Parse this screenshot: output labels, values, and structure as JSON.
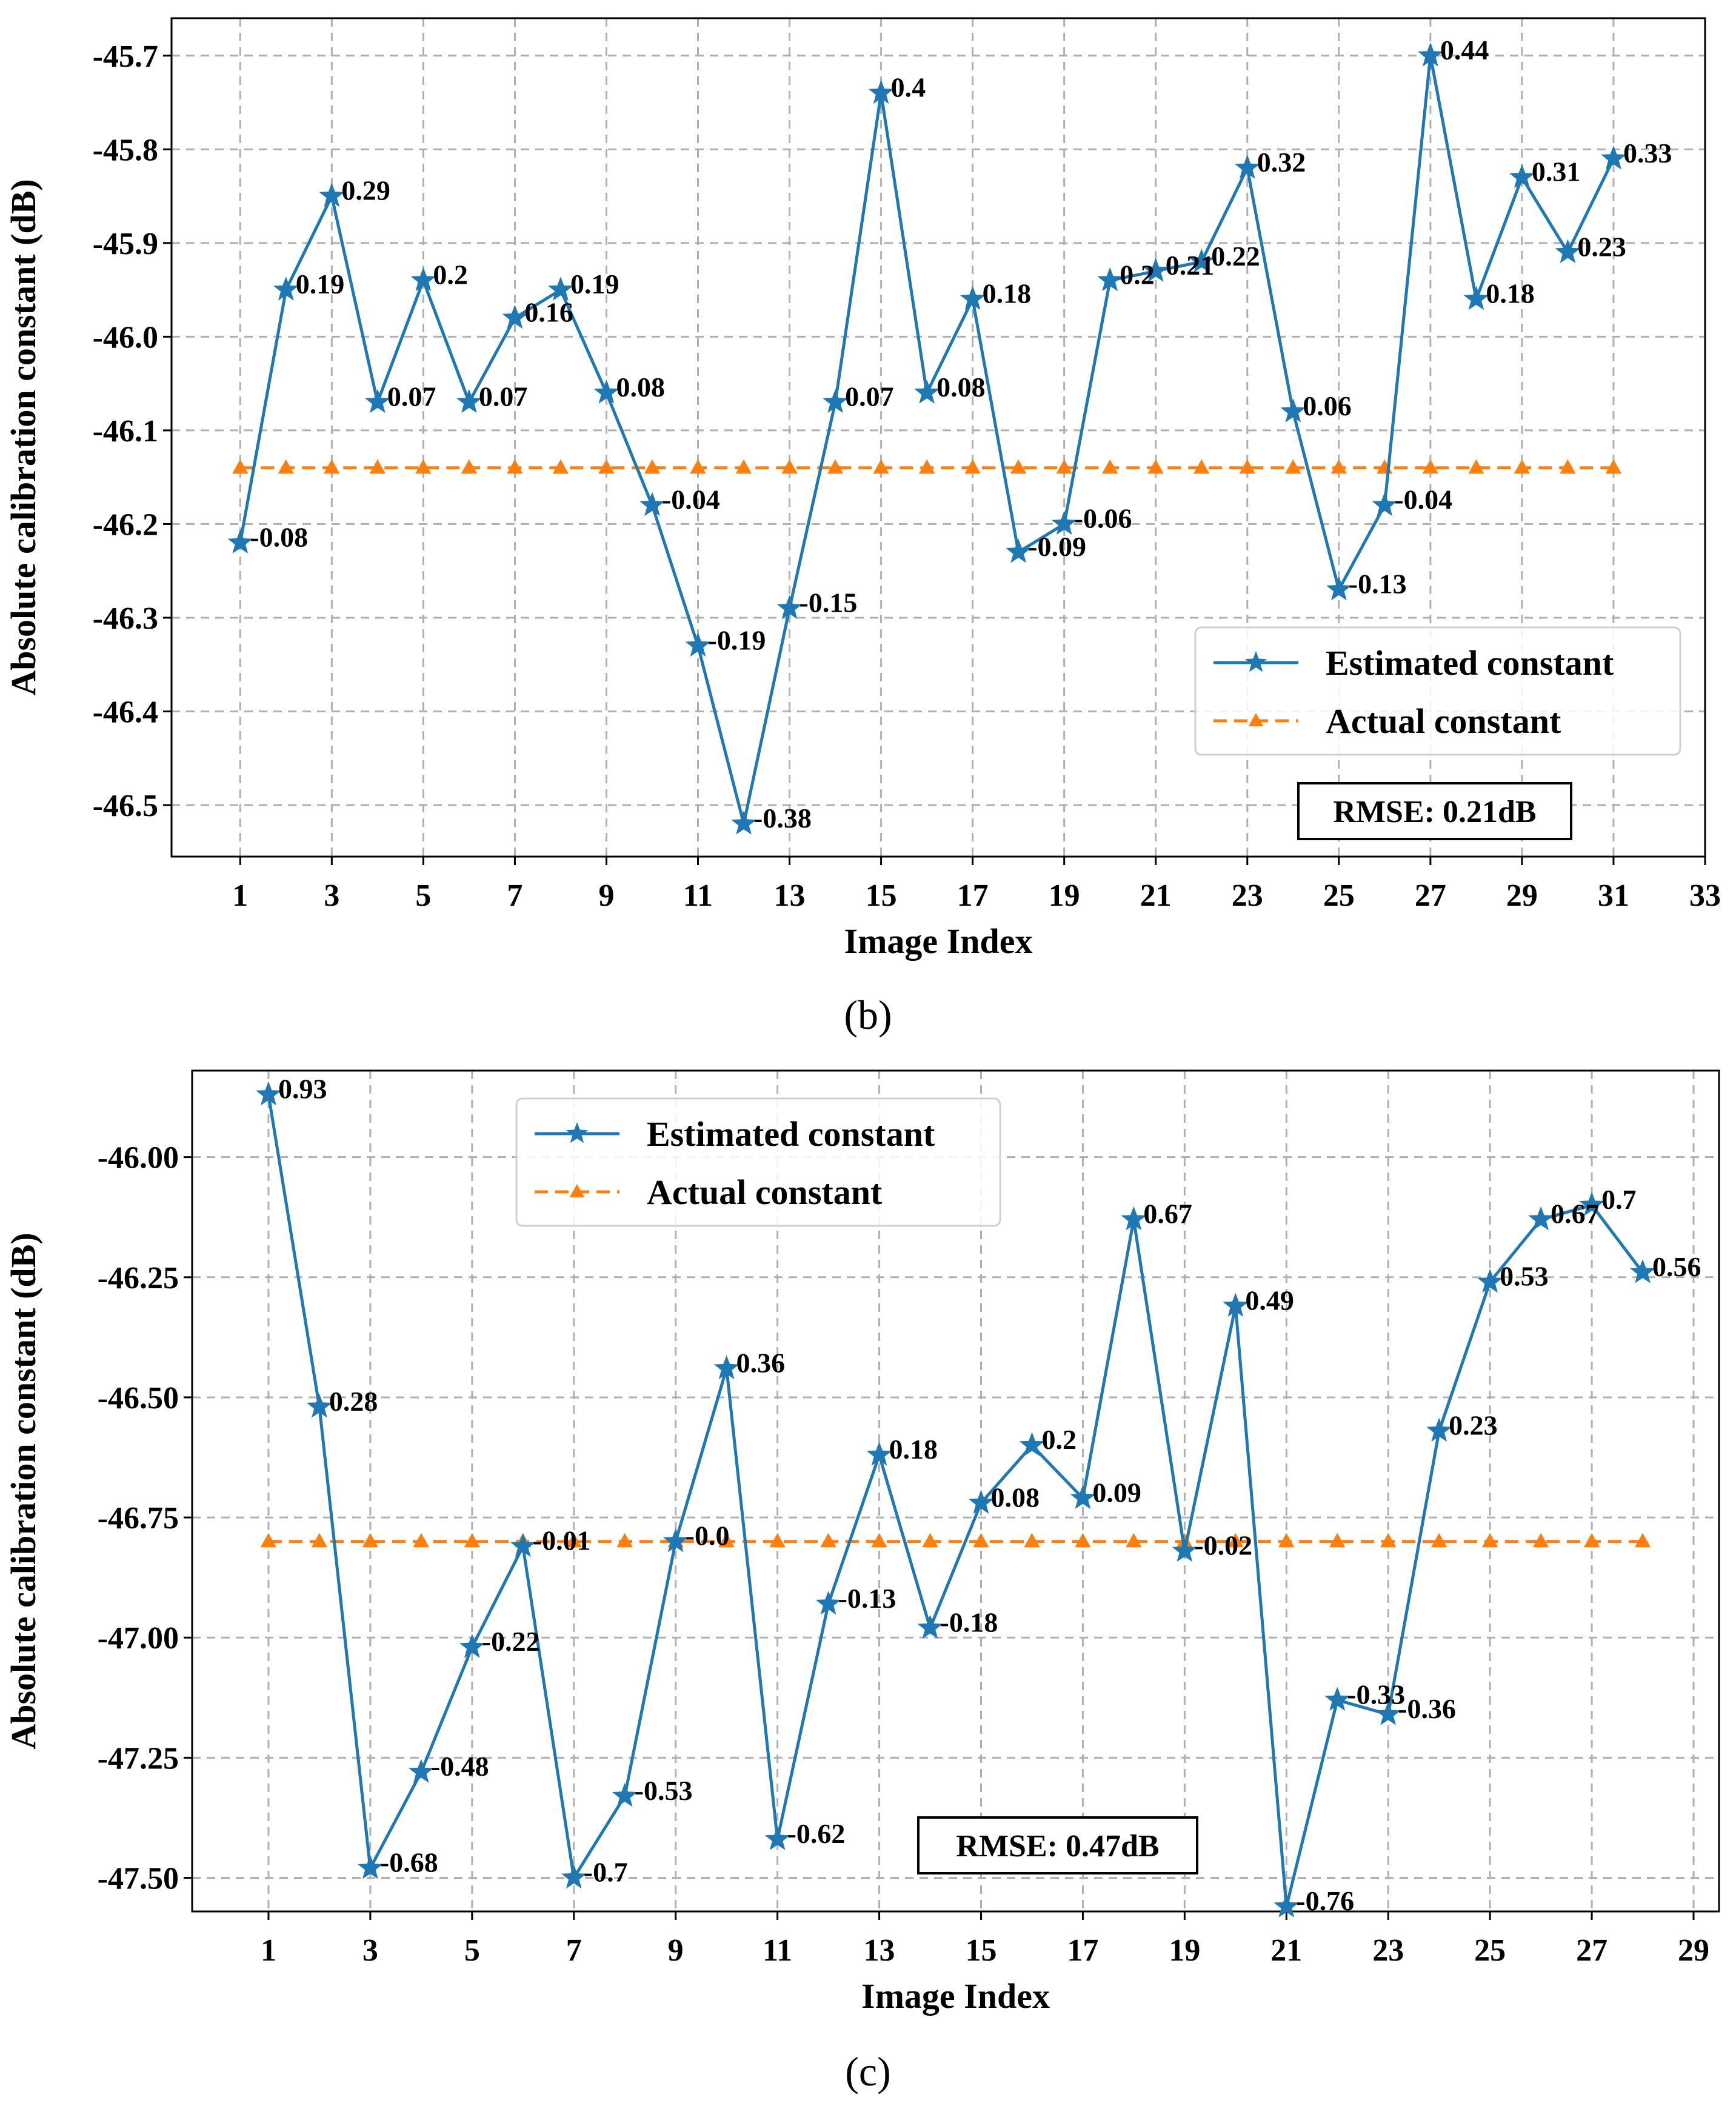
{
  "chart_data": [
    {
      "type": "line",
      "caption": "(b)",
      "xlabel": "Image Index",
      "ylabel": "Absolute calibration constant (dB)",
      "xlim": [
        -0.5,
        33
      ],
      "ylim": [
        -46.555,
        -45.66
      ],
      "xticks": [
        1,
        3,
        5,
        7,
        9,
        11,
        13,
        15,
        17,
        19,
        21,
        23,
        25,
        27,
        29,
        31,
        33
      ],
      "xtick_labels": [
        "1",
        "3",
        "5",
        "7",
        "9",
        "11",
        "13",
        "15",
        "17",
        "19",
        "21",
        "23",
        "25",
        "27",
        "29",
        "31",
        "33"
      ],
      "yticks": [
        -46.5,
        -46.4,
        -46.3,
        -46.2,
        -46.1,
        -46.0,
        -45.9,
        -45.8,
        -45.7
      ],
      "ytick_labels": [
        "-46.5",
        "-46.4",
        "-46.3",
        "-46.2",
        "-46.1",
        "-46.0",
        "-45.9",
        "-45.8",
        "-45.7"
      ],
      "grid": true,
      "legend_position": "lower-right",
      "legend": [
        "Estimated constant",
        "Actual constant"
      ],
      "rmse_text": "RMSE: 0.21dB",
      "x": [
        1,
        2,
        3,
        4,
        5,
        6,
        7,
        8,
        9,
        10,
        11,
        12,
        13,
        14,
        15,
        16,
        17,
        18,
        19,
        20,
        21,
        22,
        23,
        24,
        25,
        26,
        27,
        28,
        29,
        30,
        31
      ],
      "series": [
        {
          "name": "Estimated constant",
          "color": "#1f77b4",
          "marker": "star",
          "values": [
            -46.22,
            -45.95,
            -45.85,
            -46.07,
            -45.94,
            -46.07,
            -45.98,
            -45.95,
            -46.06,
            -46.18,
            -46.33,
            -46.52,
            -46.29,
            -46.07,
            -45.74,
            -46.06,
            -45.96,
            -46.23,
            -46.2,
            -45.94,
            -45.93,
            -45.92,
            -45.82,
            -46.08,
            -46.27,
            -46.18,
            -45.7,
            -45.96,
            -45.83,
            -45.91,
            -45.81
          ],
          "labels": [
            "-0.08",
            "0.19",
            "0.29",
            "0.07",
            "0.2",
            "0.07",
            "0.16",
            "0.19",
            "0.08",
            "-0.04",
            "-0.19",
            "-0.38",
            "-0.15",
            "0.07",
            "0.4",
            "0.08",
            "0.18",
            "-0.09",
            "-0.06",
            "0.2",
            "0.21",
            "0.22",
            "0.32",
            "0.06",
            "-0.13",
            "-0.04",
            "0.44",
            "0.18",
            "0.31",
            "0.23",
            "0.33"
          ]
        },
        {
          "name": "Actual constant",
          "color": "#ff7f0e",
          "marker": "triangle",
          "dashed": true,
          "values": [
            -46.14,
            -46.14,
            -46.14,
            -46.14,
            -46.14,
            -46.14,
            -46.14,
            -46.14,
            -46.14,
            -46.14,
            -46.14,
            -46.14,
            -46.14,
            -46.14,
            -46.14,
            -46.14,
            -46.14,
            -46.14,
            -46.14,
            -46.14,
            -46.14,
            -46.14,
            -46.14,
            -46.14,
            -46.14,
            -46.14,
            -46.14,
            -46.14,
            -46.14,
            -46.14,
            -46.14
          ]
        }
      ]
    },
    {
      "type": "line",
      "caption": "(c)",
      "xlabel": "Image Index",
      "ylabel": "Absolute calibration constant (dB)",
      "xlim": [
        -0.5,
        29.5
      ],
      "ylim": [
        -47.57,
        -45.82
      ],
      "xticks": [
        1,
        3,
        5,
        7,
        9,
        11,
        13,
        15,
        17,
        19,
        21,
        23,
        25,
        27,
        29
      ],
      "xtick_labels": [
        "1",
        "3",
        "5",
        "7",
        "9",
        "11",
        "13",
        "15",
        "17",
        "19",
        "21",
        "23",
        "25",
        "27",
        "29"
      ],
      "yticks": [
        -47.5,
        -47.25,
        -47.0,
        -46.75,
        -46.5,
        -46.25,
        -46.0
      ],
      "ytick_labels": [
        "-47.50",
        "-47.25",
        "-47.00",
        "-46.75",
        "-46.50",
        "-46.25",
        "-46.00"
      ],
      "grid": true,
      "legend_position": "upper-center",
      "legend": [
        "Estimated constant",
        "Actual constant"
      ],
      "rmse_text": "RMSE: 0.47dB",
      "x": [
        1,
        2,
        3,
        4,
        5,
        6,
        7,
        8,
        9,
        10,
        11,
        12,
        13,
        14,
        15,
        16,
        17,
        18,
        19,
        20,
        21,
        22,
        23,
        24,
        25,
        26,
        27,
        28
      ],
      "series": [
        {
          "name": "Estimated constant",
          "color": "#1f77b4",
          "marker": "star",
          "values": [
            -45.87,
            -46.52,
            -47.48,
            -47.28,
            -47.02,
            -46.81,
            -47.5,
            -47.33,
            -46.8,
            -46.44,
            -47.42,
            -46.93,
            -46.62,
            -46.98,
            -46.72,
            -46.6,
            -46.71,
            -46.13,
            -46.82,
            -46.31,
            -47.56,
            -47.13,
            -47.16,
            -46.57,
            -46.26,
            -46.13,
            -46.1,
            -46.24
          ],
          "labels": [
            "0.93",
            "0.28",
            "-0.68",
            "-0.48",
            "-0.22",
            "-0.01",
            "-0.7",
            "-0.53",
            "-0.0",
            "0.36",
            "-0.62",
            "-0.13",
            "0.18",
            "-0.18",
            "0.08",
            "0.2",
            "0.09",
            "0.67",
            "-0.02",
            "0.49",
            "-0.76",
            "-0.33",
            "-0.36",
            "0.23",
            "0.53",
            "0.67",
            "0.7",
            "0.56"
          ]
        },
        {
          "name": "Actual constant",
          "color": "#ff7f0e",
          "marker": "triangle",
          "dashed": true,
          "values": [
            -46.8,
            -46.8,
            -46.8,
            -46.8,
            -46.8,
            -46.8,
            -46.8,
            -46.8,
            -46.8,
            -46.8,
            -46.8,
            -46.8,
            -46.8,
            -46.8,
            -46.8,
            -46.8,
            -46.8,
            -46.8,
            -46.8,
            -46.8,
            -46.8,
            -46.8,
            -46.8,
            -46.8,
            -46.8,
            -46.8,
            -46.8,
            -46.8
          ]
        }
      ]
    }
  ]
}
